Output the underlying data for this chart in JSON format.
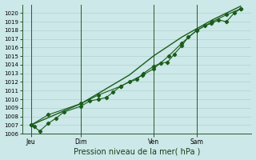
{
  "xlabel": "Pression niveau de la mer( hPa )",
  "bg_color": "#cce8e8",
  "plot_bg_color": "#cce8e8",
  "grid_color": "#aacccc",
  "line_color": "#1a5c1a",
  "ylim": [
    1006,
    1021
  ],
  "yticks": [
    1006,
    1007,
    1008,
    1009,
    1010,
    1011,
    1012,
    1013,
    1014,
    1015,
    1016,
    1017,
    1018,
    1019,
    1020
  ],
  "day_labels": [
    "Jeu",
    "Dim",
    "Ven",
    "Sam"
  ],
  "day_ticks": [
    0.04,
    0.27,
    0.6,
    0.8
  ],
  "day_vlines": [
    0.04,
    0.27,
    0.6,
    0.8
  ],
  "xlim": [
    0.0,
    1.05
  ],
  "series1_x": [
    0.04,
    0.055,
    0.08,
    0.12,
    0.155,
    0.19,
    0.27,
    0.31,
    0.35,
    0.385,
    0.415,
    0.45,
    0.49,
    0.525,
    0.555,
    0.6,
    0.635,
    0.665,
    0.695,
    0.73,
    0.76,
    0.8,
    0.835,
    0.865,
    0.9,
    0.935,
    0.97,
    1.0
  ],
  "series1_y": [
    1007.0,
    1006.8,
    1006.3,
    1007.2,
    1007.8,
    1008.5,
    1009.2,
    1009.8,
    1010.0,
    1010.2,
    1010.8,
    1011.5,
    1012.0,
    1012.3,
    1013.0,
    1013.8,
    1014.2,
    1014.3,
    1015.2,
    1016.2,
    1017.2,
    1018.0,
    1018.5,
    1018.8,
    1019.2,
    1019.0,
    1020.0,
    1020.5
  ],
  "series2_x": [
    0.04,
    0.12,
    0.27,
    0.35,
    0.45,
    0.55,
    0.6,
    0.67,
    0.73,
    0.8,
    0.87,
    0.935,
    1.0
  ],
  "series2_y": [
    1007.0,
    1008.2,
    1009.5,
    1010.5,
    1011.5,
    1012.8,
    1013.5,
    1015.0,
    1016.5,
    1018.0,
    1019.0,
    1019.8,
    1020.5
  ],
  "series3_x": [
    0.04,
    0.27,
    0.49,
    0.6,
    0.73,
    0.87,
    1.0
  ],
  "series3_y": [
    1007.0,
    1009.5,
    1012.8,
    1015.0,
    1017.2,
    1019.2,
    1020.8
  ]
}
